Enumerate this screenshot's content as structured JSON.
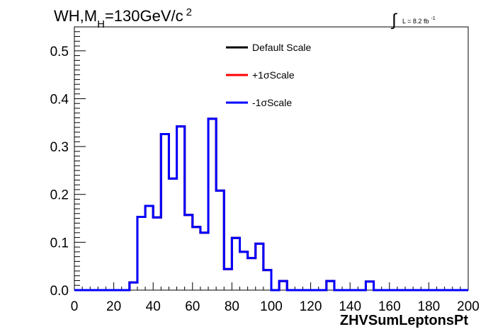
{
  "title": {
    "main": "WH,M",
    "sub": "H",
    "rest": "=130GeV/c",
    "sup": "2"
  },
  "lumi": {
    "integral": "∫",
    "text": "L = 8.2 fb",
    "sup": "-1"
  },
  "legend": [
    {
      "label": "Default Scale",
      "color": "#000000"
    },
    {
      "label": "+1σScale",
      "color": "#ff0000"
    },
    {
      "label": "-1σScale",
      "color": "#0000ff"
    }
  ],
  "chart_data": {
    "type": "line",
    "xlabel": "ZHVSumLeptonsPt",
    "ylabel": "",
    "xlim": [
      0,
      200
    ],
    "ylim": [
      0,
      0.55
    ],
    "xticks": [
      0,
      20,
      40,
      60,
      80,
      100,
      120,
      140,
      160,
      180,
      200
    ],
    "xtick_labels": [
      "0",
      "20",
      "40",
      "60",
      "80",
      "100",
      "120",
      "140",
      "160",
      "180",
      "200"
    ],
    "yticks": [
      0,
      0.1,
      0.2,
      0.3,
      0.4,
      0.5
    ],
    "ytick_labels": [
      "0.0",
      "0.1",
      "0.2",
      "0.3",
      "0.4",
      "0.5"
    ],
    "grid": false,
    "legend_position": "top-center",
    "bin_width": 4,
    "bin_edges_start": 0,
    "series": [
      {
        "name": "Default Scale",
        "color": "#000000",
        "values": [
          0,
          0,
          0,
          0,
          0,
          0,
          0,
          0.016,
          0.153,
          0.176,
          0.152,
          0.326,
          0.233,
          0.342,
          0.157,
          0.132,
          0.12,
          0.358,
          0.208,
          0.044,
          0.109,
          0.08,
          0.067,
          0.097,
          0.042,
          0,
          0.019,
          0,
          0,
          0,
          0,
          0,
          0.019,
          0,
          0,
          0,
          0,
          0.018,
          0,
          0,
          0,
          0,
          0,
          0,
          0,
          0,
          0,
          0,
          0,
          0
        ]
      },
      {
        "name": "+1σScale",
        "color": "#ff0000",
        "values": [
          0,
          0,
          0,
          0,
          0,
          0,
          0,
          0.016,
          0.153,
          0.176,
          0.152,
          0.326,
          0.233,
          0.342,
          0.157,
          0.132,
          0.12,
          0.358,
          0.208,
          0.044,
          0.109,
          0.08,
          0.067,
          0.097,
          0.042,
          0,
          0.019,
          0,
          0,
          0,
          0,
          0,
          0.019,
          0,
          0,
          0,
          0,
          0.018,
          0,
          0,
          0,
          0,
          0,
          0,
          0,
          0,
          0,
          0,
          0,
          0
        ]
      },
      {
        "name": "-1σScale",
        "color": "#0000ff",
        "values": [
          0,
          0,
          0,
          0,
          0,
          0,
          0,
          0.016,
          0.153,
          0.176,
          0.152,
          0.326,
          0.233,
          0.342,
          0.157,
          0.132,
          0.12,
          0.358,
          0.208,
          0.044,
          0.109,
          0.08,
          0.067,
          0.097,
          0.042,
          0,
          0.019,
          0,
          0,
          0,
          0,
          0,
          0.019,
          0,
          0,
          0,
          0,
          0.018,
          0,
          0,
          0,
          0,
          0,
          0,
          0,
          0,
          0,
          0,
          0,
          0
        ]
      }
    ]
  }
}
